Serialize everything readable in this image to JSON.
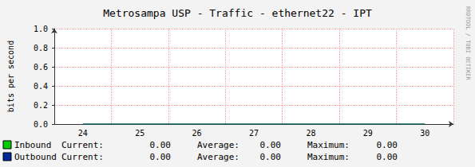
{
  "chart_data": {
    "type": "line",
    "title": "Metrosampa USP - Traffic - ethernet22 - IPT",
    "y_label": "bits per second",
    "categories": [
      "24",
      "25",
      "26",
      "27",
      "28",
      "29",
      "30"
    ],
    "series": [
      {
        "name": "Inbound",
        "color": "#00cc00",
        "values": [
          0,
          0,
          0,
          0,
          0,
          0,
          0
        ],
        "current": {
          "value": 0,
          "label": "0.00"
        },
        "average": {
          "value": 0,
          "label": "0.00"
        },
        "maximum": {
          "value": 0,
          "label": "0.00"
        }
      },
      {
        "name": "Outbound",
        "color": "#002a97",
        "values": [
          0,
          0,
          0,
          0,
          0,
          0,
          0
        ],
        "current": {
          "value": 0,
          "label": "0.00"
        },
        "average": {
          "value": 0,
          "label": "0.00"
        },
        "maximum": {
          "value": 0,
          "label": "0.00"
        }
      }
    ],
    "stat_labels": {
      "current": "Current:",
      "average": "Average:",
      "maximum": "Maximum:"
    },
    "annotation": "RRDTOOL / TOBI OETIKER",
    "ylim": [
      0,
      1
    ],
    "yticks": [
      {
        "value": 0,
        "label": "0.0"
      },
      {
        "value": 0.2,
        "label": "0.2"
      },
      {
        "value": 0.4,
        "label": "0.4"
      },
      {
        "value": 0.6,
        "label": "0.6"
      },
      {
        "value": 0.8,
        "label": "0.8"
      },
      {
        "value": 1,
        "label": "1.0"
      }
    ],
    "grid": true
  }
}
